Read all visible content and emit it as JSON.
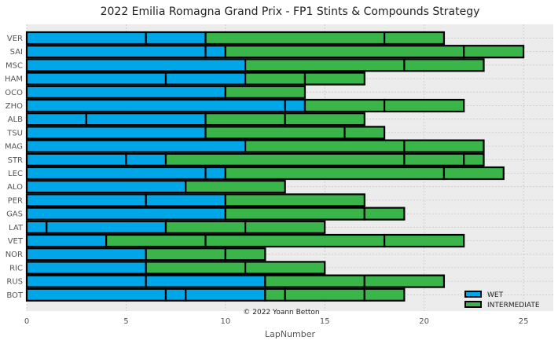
{
  "chart_data": {
    "type": "bar",
    "orientation": "horizontal-stacked",
    "title": "2022 Emilia Romagna Grand Prix - FP1 Stints & Compounds Strategy",
    "xlabel": "LapNumber",
    "ylabel": "",
    "xlim": [
      0,
      26.5
    ],
    "xticks": [
      0,
      5,
      10,
      15,
      20,
      25
    ],
    "grid": true,
    "legend_position": "bottom-right",
    "credit": "© 2022 Yoann Betton",
    "compounds": [
      {
        "name": "WET",
        "color": "#00a7e8"
      },
      {
        "name": "INTERMEDIATE",
        "color": "#3ab54a"
      }
    ],
    "drivers": [
      {
        "driver": "VER",
        "stints": [
          {
            "compound": "WET",
            "start": 0,
            "end": 6
          },
          {
            "compound": "WET",
            "start": 6,
            "end": 9
          },
          {
            "compound": "INTERMEDIATE",
            "start": 9,
            "end": 18
          },
          {
            "compound": "INTERMEDIATE",
            "start": 18,
            "end": 21
          }
        ]
      },
      {
        "driver": "SAI",
        "stints": [
          {
            "compound": "WET",
            "start": 0,
            "end": 9
          },
          {
            "compound": "WET",
            "start": 9,
            "end": 10
          },
          {
            "compound": "INTERMEDIATE",
            "start": 10,
            "end": 22
          },
          {
            "compound": "INTERMEDIATE",
            "start": 22,
            "end": 25
          }
        ]
      },
      {
        "driver": "MSC",
        "stints": [
          {
            "compound": "WET",
            "start": 0,
            "end": 11
          },
          {
            "compound": "INTERMEDIATE",
            "start": 11,
            "end": 19
          },
          {
            "compound": "INTERMEDIATE",
            "start": 19,
            "end": 23
          }
        ]
      },
      {
        "driver": "HAM",
        "stints": [
          {
            "compound": "WET",
            "start": 0,
            "end": 7
          },
          {
            "compound": "WET",
            "start": 7,
            "end": 11
          },
          {
            "compound": "INTERMEDIATE",
            "start": 11,
            "end": 14
          },
          {
            "compound": "INTERMEDIATE",
            "start": 14,
            "end": 17
          }
        ]
      },
      {
        "driver": "OCO",
        "stints": [
          {
            "compound": "WET",
            "start": 0,
            "end": 10
          },
          {
            "compound": "INTERMEDIATE",
            "start": 10,
            "end": 14
          }
        ]
      },
      {
        "driver": "ZHO",
        "stints": [
          {
            "compound": "WET",
            "start": 0,
            "end": 13
          },
          {
            "compound": "WET",
            "start": 13,
            "end": 14
          },
          {
            "compound": "INTERMEDIATE",
            "start": 14,
            "end": 18
          },
          {
            "compound": "INTERMEDIATE",
            "start": 18,
            "end": 22
          }
        ]
      },
      {
        "driver": "ALB",
        "stints": [
          {
            "compound": "WET",
            "start": 0,
            "end": 3
          },
          {
            "compound": "WET",
            "start": 3,
            "end": 9
          },
          {
            "compound": "INTERMEDIATE",
            "start": 9,
            "end": 13
          },
          {
            "compound": "INTERMEDIATE",
            "start": 13,
            "end": 17
          }
        ]
      },
      {
        "driver": "TSU",
        "stints": [
          {
            "compound": "WET",
            "start": 0,
            "end": 9
          },
          {
            "compound": "INTERMEDIATE",
            "start": 9,
            "end": 16
          },
          {
            "compound": "INTERMEDIATE",
            "start": 16,
            "end": 18
          }
        ]
      },
      {
        "driver": "MAG",
        "stints": [
          {
            "compound": "WET",
            "start": 0,
            "end": 11
          },
          {
            "compound": "INTERMEDIATE",
            "start": 11,
            "end": 19
          },
          {
            "compound": "INTERMEDIATE",
            "start": 19,
            "end": 23
          }
        ]
      },
      {
        "driver": "STR",
        "stints": [
          {
            "compound": "WET",
            "start": 0,
            "end": 5
          },
          {
            "compound": "WET",
            "start": 5,
            "end": 7
          },
          {
            "compound": "INTERMEDIATE",
            "start": 7,
            "end": 19
          },
          {
            "compound": "INTERMEDIATE",
            "start": 19,
            "end": 22
          },
          {
            "compound": "INTERMEDIATE",
            "start": 22,
            "end": 23
          }
        ]
      },
      {
        "driver": "LEC",
        "stints": [
          {
            "compound": "WET",
            "start": 0,
            "end": 9
          },
          {
            "compound": "WET",
            "start": 9,
            "end": 10
          },
          {
            "compound": "INTERMEDIATE",
            "start": 10,
            "end": 21
          },
          {
            "compound": "INTERMEDIATE",
            "start": 21,
            "end": 24
          }
        ]
      },
      {
        "driver": "ALO",
        "stints": [
          {
            "compound": "WET",
            "start": 0,
            "end": 8
          },
          {
            "compound": "INTERMEDIATE",
            "start": 8,
            "end": 13
          }
        ]
      },
      {
        "driver": "PER",
        "stints": [
          {
            "compound": "WET",
            "start": 0,
            "end": 6
          },
          {
            "compound": "WET",
            "start": 6,
            "end": 10
          },
          {
            "compound": "INTERMEDIATE",
            "start": 10,
            "end": 17
          }
        ]
      },
      {
        "driver": "GAS",
        "stints": [
          {
            "compound": "WET",
            "start": 0,
            "end": 10
          },
          {
            "compound": "INTERMEDIATE",
            "start": 10,
            "end": 17
          },
          {
            "compound": "INTERMEDIATE",
            "start": 17,
            "end": 19
          }
        ]
      },
      {
        "driver": "LAT",
        "stints": [
          {
            "compound": "WET",
            "start": 0,
            "end": 1
          },
          {
            "compound": "WET",
            "start": 1,
            "end": 7
          },
          {
            "compound": "INTERMEDIATE",
            "start": 7,
            "end": 11
          },
          {
            "compound": "INTERMEDIATE",
            "start": 11,
            "end": 15
          }
        ]
      },
      {
        "driver": "VET",
        "stints": [
          {
            "compound": "WET",
            "start": 0,
            "end": 4
          },
          {
            "compound": "INTERMEDIATE",
            "start": 4,
            "end": 9
          },
          {
            "compound": "INTERMEDIATE",
            "start": 9,
            "end": 18
          },
          {
            "compound": "INTERMEDIATE",
            "start": 18,
            "end": 22
          }
        ]
      },
      {
        "driver": "NOR",
        "stints": [
          {
            "compound": "WET",
            "start": 0,
            "end": 6
          },
          {
            "compound": "INTERMEDIATE",
            "start": 6,
            "end": 10
          },
          {
            "compound": "INTERMEDIATE",
            "start": 10,
            "end": 12
          }
        ]
      },
      {
        "driver": "RIC",
        "stints": [
          {
            "compound": "WET",
            "start": 0,
            "end": 6
          },
          {
            "compound": "INTERMEDIATE",
            "start": 6,
            "end": 11
          },
          {
            "compound": "INTERMEDIATE",
            "start": 11,
            "end": 15
          }
        ]
      },
      {
        "driver": "RUS",
        "stints": [
          {
            "compound": "WET",
            "start": 0,
            "end": 6
          },
          {
            "compound": "WET",
            "start": 6,
            "end": 12
          },
          {
            "compound": "INTERMEDIATE",
            "start": 12,
            "end": 17
          },
          {
            "compound": "INTERMEDIATE",
            "start": 17,
            "end": 21
          }
        ]
      },
      {
        "driver": "BOT",
        "stints": [
          {
            "compound": "WET",
            "start": 0,
            "end": 7
          },
          {
            "compound": "WET",
            "start": 7,
            "end": 8
          },
          {
            "compound": "WET",
            "start": 8,
            "end": 12
          },
          {
            "compound": "INTERMEDIATE",
            "start": 12,
            "end": 13
          },
          {
            "compound": "INTERMEDIATE",
            "start": 13,
            "end": 17
          },
          {
            "compound": "INTERMEDIATE",
            "start": 17,
            "end": 19
          }
        ]
      }
    ]
  }
}
